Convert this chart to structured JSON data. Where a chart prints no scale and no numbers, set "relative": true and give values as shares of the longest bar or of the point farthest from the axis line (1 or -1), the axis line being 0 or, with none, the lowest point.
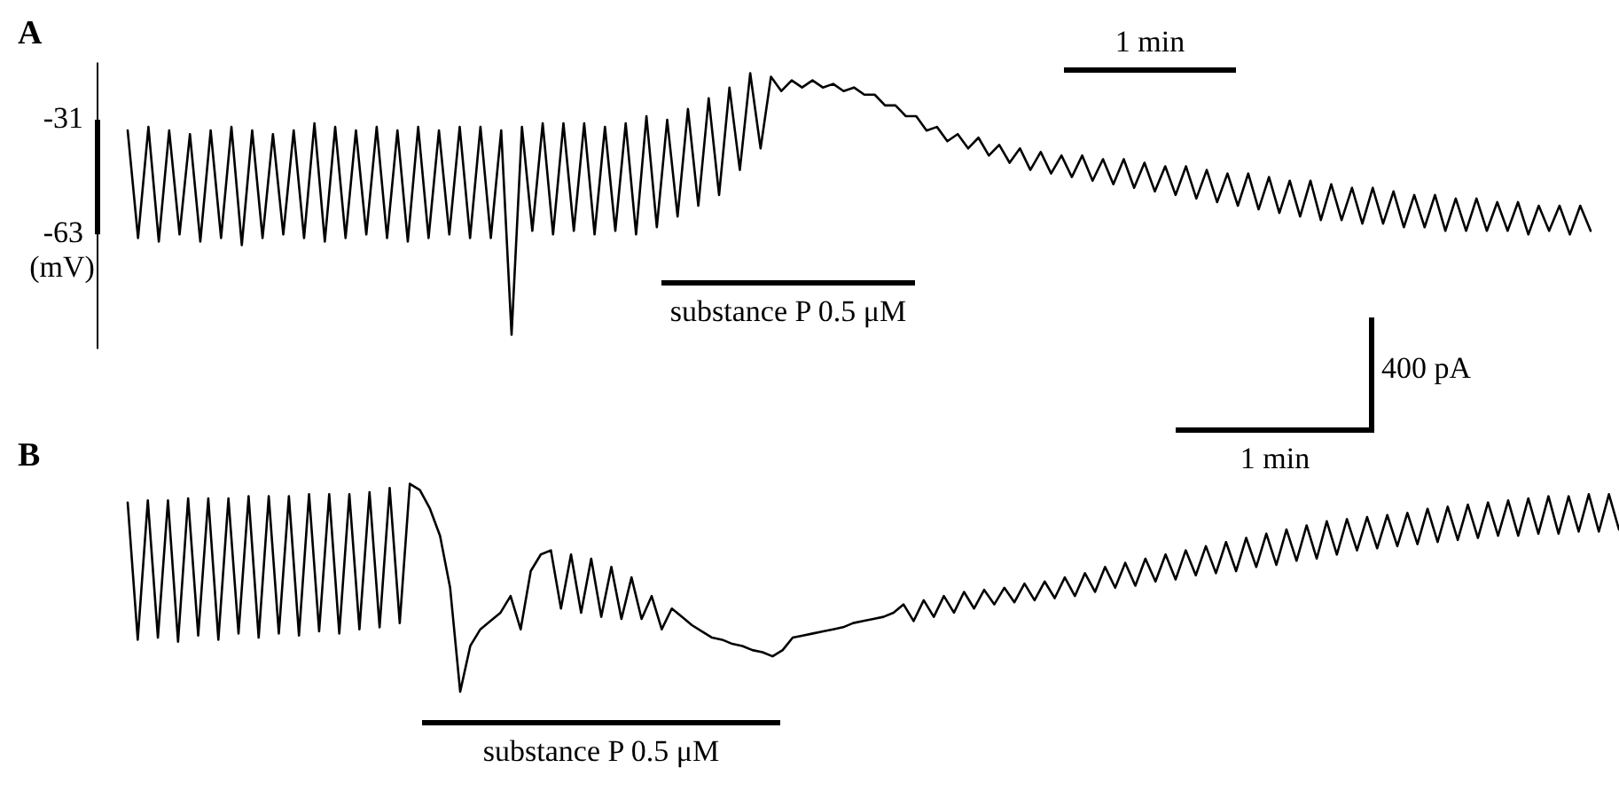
{
  "chart_data": [
    {
      "type": "line",
      "title": "A",
      "ylabel": "(mV)",
      "tick_labels": "y",
      "grid": false,
      "legend": false,
      "marker": "none",
      "line_style": "solid",
      "ylim": [
        -95,
        -15
      ],
      "yticks": [
        -31,
        -63
      ],
      "annotations": [
        "1 min",
        "substance P 0.5 μM"
      ],
      "categories": [
        null,
        null,
        null,
        null,
        null,
        null,
        null,
        null,
        null,
        null,
        null,
        null,
        null,
        null,
        null,
        null,
        null,
        null,
        null,
        null,
        null,
        null,
        null,
        null,
        null,
        null,
        null,
        null,
        null,
        null,
        null,
        null,
        null,
        null,
        null,
        null,
        null,
        null,
        null,
        null,
        null,
        null,
        null,
        null,
        null,
        null,
        null,
        null,
        null,
        null,
        null,
        null,
        null,
        null,
        null,
        null,
        null,
        null,
        null,
        null,
        null,
        null,
        null,
        null,
        null,
        null,
        null,
        null,
        null,
        null,
        null,
        null,
        null,
        null,
        null,
        null,
        null,
        null,
        null,
        null,
        null,
        null,
        null,
        null,
        null,
        null,
        null,
        null,
        null,
        null,
        null,
        null,
        null,
        null,
        null,
        null,
        null,
        null,
        null,
        null,
        null,
        null,
        null,
        null,
        null,
        null,
        null,
        null,
        null,
        null,
        null,
        null,
        null,
        null,
        null,
        null,
        null,
        null,
        null,
        null,
        null,
        null,
        null,
        null,
        null,
        null,
        null,
        null,
        null,
        null,
        null,
        null,
        null,
        null,
        null,
        null,
        null,
        null,
        null,
        null,
        null,
        null
      ],
      "series": [
        {
          "color": "#000000",
          "values": [
            -34,
            -64,
            -33,
            -65,
            -34,
            -63,
            -35,
            -65,
            -34,
            -64,
            -33,
            -66,
            -34,
            -64,
            -35,
            -63,
            -34,
            -64,
            -32,
            -65,
            -33,
            -64,
            -34,
            -63,
            -33,
            -64,
            -34,
            -65,
            -33,
            -64,
            -34,
            -63,
            -33,
            -64,
            -33,
            -64,
            -34,
            -91,
            -33,
            -62,
            -32,
            -63,
            -32,
            -62,
            -32,
            -63,
            -33,
            -62,
            -32,
            -63,
            -30,
            -61,
            -31,
            -58,
            -28,
            -55,
            -25,
            -52,
            -22,
            -45,
            -18,
            -39,
            -19,
            -23,
            -20,
            -22,
            -20,
            -22,
            -21,
            -23,
            -22,
            -24,
            -24,
            -27,
            -27,
            -30,
            -30,
            -34,
            -33,
            -37,
            -35,
            -39,
            -36,
            -41,
            -38,
            -43,
            -39,
            -45,
            -40,
            -46,
            -41,
            -47,
            -41,
            -48,
            -42,
            -49,
            -42,
            -50,
            -43,
            -51,
            -44,
            -52,
            -44,
            -53,
            -45,
            -54,
            -46,
            -55,
            -46,
            -56,
            -47,
            -57,
            -48,
            -58,
            -48,
            -59,
            -49,
            -59,
            -50,
            -60,
            -50,
            -60,
            -51,
            -61,
            -52,
            -61,
            -52,
            -62,
            -53,
            -62,
            -53,
            -62,
            -54,
            -62,
            -54,
            -63,
            -55,
            -62,
            -55,
            -63,
            -55,
            -62
          ]
        }
      ]
    },
    {
      "type": "line",
      "title": "B",
      "relative": true,
      "tick_labels": false,
      "grid": false,
      "legend": false,
      "marker": "none",
      "line_style": "solid",
      "annotations": [
        "1 min",
        "400 pA",
        "substance P 0.5 μM"
      ],
      "categories": [
        null,
        null,
        null,
        null,
        null,
        null,
        null,
        null,
        null,
        null,
        null,
        null,
        null,
        null,
        null,
        null,
        null,
        null,
        null,
        null,
        null,
        null,
        null,
        null,
        null,
        null,
        null,
        null,
        null,
        null,
        null,
        null,
        null,
        null,
        null,
        null,
        null,
        null,
        null,
        null,
        null,
        null,
        null,
        null,
        null,
        null,
        null,
        null,
        null,
        null,
        null,
        null,
        null,
        null,
        null,
        null,
        null,
        null,
        null,
        null,
        null,
        null,
        null,
        null,
        null,
        null,
        null,
        null,
        null,
        null,
        null,
        null,
        null,
        null,
        null,
        null,
        null,
        null,
        null,
        null,
        null,
        null,
        null,
        null,
        null,
        null,
        null,
        null,
        null,
        null,
        null,
        null,
        null,
        null,
        null,
        null,
        null,
        null,
        null,
        null,
        null,
        null,
        null,
        null,
        null,
        null,
        null,
        null,
        null,
        null,
        null,
        null,
        null,
        null,
        null,
        null,
        null,
        null,
        null,
        null,
        null,
        null,
        null,
        null,
        null,
        null,
        null,
        null,
        null,
        null,
        null,
        null,
        null,
        null,
        null,
        null,
        null,
        null,
        null,
        null,
        null,
        null,
        null,
        null,
        null,
        null,
        null,
        null,
        null
      ],
      "series": [
        {
          "color": "#000000",
          "values": [
            0.91,
            0.25,
            0.92,
            0.26,
            0.92,
            0.24,
            0.93,
            0.27,
            0.93,
            0.25,
            0.93,
            0.28,
            0.94,
            0.26,
            0.94,
            0.28,
            0.94,
            0.27,
            0.95,
            0.29,
            0.95,
            0.28,
            0.95,
            0.3,
            0.96,
            0.31,
            0.98,
            0.33,
            1,
            0.97,
            0.88,
            0.75,
            0.5,
            0,
            0.22,
            0.3,
            0.34,
            0.38,
            0.46,
            0.3,
            0.58,
            0.66,
            0.68,
            0.4,
            0.66,
            0.38,
            0.64,
            0.36,
            0.6,
            0.35,
            0.55,
            0.35,
            0.46,
            0.3,
            0.4,
            0.36,
            0.32,
            0.29,
            0.26,
            0.25,
            0.23,
            0.22,
            0.2,
            0.19,
            0.17,
            0.2,
            0.26,
            0.27,
            0.28,
            0.29,
            0.3,
            0.31,
            0.33,
            0.34,
            0.35,
            0.36,
            0.38,
            0.42,
            0.34,
            0.44,
            0.36,
            0.46,
            0.38,
            0.48,
            0.4,
            0.49,
            0.42,
            0.5,
            0.43,
            0.52,
            0.44,
            0.53,
            0.45,
            0.55,
            0.46,
            0.57,
            0.48,
            0.6,
            0.5,
            0.62,
            0.51,
            0.64,
            0.53,
            0.66,
            0.54,
            0.68,
            0.56,
            0.7,
            0.57,
            0.72,
            0.58,
            0.74,
            0.6,
            0.76,
            0.61,
            0.78,
            0.63,
            0.8,
            0.64,
            0.82,
            0.66,
            0.83,
            0.68,
            0.84,
            0.69,
            0.85,
            0.7,
            0.86,
            0.71,
            0.88,
            0.72,
            0.89,
            0.73,
            0.9,
            0.74,
            0.91,
            0.75,
            0.92,
            0.75,
            0.93,
            0.76,
            0.94,
            0.76,
            0.94,
            0.77,
            0.95,
            0.77,
            0.95,
            0.78
          ]
        }
      ]
    }
  ]
}
